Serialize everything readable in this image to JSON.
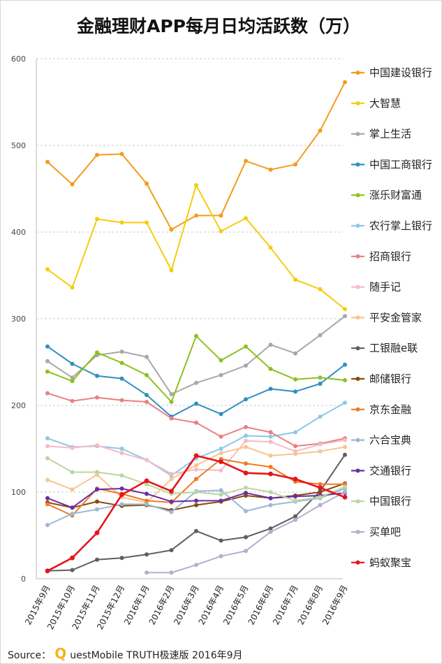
{
  "chart_data": {
    "type": "line",
    "title": "金融理财APP每月日均活跃数（万）",
    "x": [
      "2015年9月",
      "2015年10月",
      "2015年11月",
      "2015年12月",
      "2016年1月",
      "2016年2月",
      "2016年3月",
      "2016年4月",
      "2016年5月",
      "2016年6月",
      "2016年7月",
      "2016年8月",
      "2016年9月"
    ],
    "ylim": [
      0,
      600
    ],
    "yticks": [
      "0",
      "100",
      "200",
      "300",
      "400",
      "500",
      "600"
    ],
    "grid": true,
    "legend_position": "right",
    "series": [
      {
        "name": "中国建设银行",
        "color": "#f39c1c",
        "values": [
          481,
          455,
          489,
          490,
          456,
          403,
          419,
          419,
          482,
          472,
          478,
          517,
          573
        ]
      },
      {
        "name": "大智慧",
        "color": "#f5cd0f",
        "values": [
          357,
          336,
          415,
          411,
          411,
          356,
          454,
          401,
          416,
          382,
          345,
          334,
          311
        ]
      },
      {
        "name": "掌上生活",
        "color": "#a8a8a8",
        "values": [
          251,
          232,
          258,
          262,
          256,
          213,
          226,
          235,
          246,
          270,
          260,
          281,
          303
        ]
      },
      {
        "name": "中国工商银行",
        "color": "#2e8fc2",
        "values": [
          268,
          248,
          234,
          231,
          212,
          187,
          202,
          190,
          207,
          219,
          216,
          225,
          247
        ]
      },
      {
        "name": "涨乐财富通",
        "color": "#8bc21e",
        "values": [
          239,
          228,
          261,
          249,
          235,
          204,
          280,
          252,
          268,
          242,
          230,
          232,
          229
        ]
      },
      {
        "name": "农行掌上银行",
        "color": "#8ec8e6",
        "values": [
          162,
          152,
          153,
          150,
          137,
          119,
          139,
          150,
          165,
          164,
          169,
          187,
          203
        ]
      },
      {
        "name": "招商银行",
        "color": "#e98080",
        "values": [
          214,
          205,
          209,
          206,
          204,
          185,
          180,
          164,
          175,
          169,
          153,
          156,
          162
        ]
      },
      {
        "name": "随手记",
        "color": "#f5bcc4",
        "values": [
          153,
          151,
          154,
          145,
          137,
          121,
          126,
          125,
          159,
          158,
          147,
          155,
          160
        ]
      },
      {
        "name": "平安金管家",
        "color": "#f8c58f",
        "values": [
          114,
          103,
          120,
          94,
          88,
          115,
          131,
          145,
          152,
          142,
          144,
          147,
          152
        ]
      },
      {
        "name": "工银融e联",
        "color": "#5f5f5f",
        "values": [
          9,
          10,
          22,
          24,
          28,
          33,
          55,
          44,
          48,
          58,
          72,
          101,
          143
        ]
      },
      {
        "name": "邮储银行",
        "color": "#8a4a0e",
        "values": [
          88,
          82,
          89,
          84,
          85,
          79,
          85,
          89,
          96,
          93,
          96,
          100,
          110
        ]
      },
      {
        "name": "京东金融",
        "color": "#ef7a22",
        "values": [
          86,
          73,
          104,
          98,
          90,
          88,
          115,
          138,
          133,
          129,
          112,
          109,
          109
        ]
      },
      {
        "name": "六合宝典",
        "color": "#9cb8d8",
        "values": [
          62,
          75,
          80,
          86,
          86,
          77,
          101,
          102,
          78,
          85,
          89,
          93,
          104
        ]
      },
      {
        "name": "交通银行",
        "color": "#6b2ea0",
        "values": [
          93,
          82,
          103,
          104,
          98,
          89,
          90,
          90,
          99,
          93,
          95,
          96,
          99
        ]
      },
      {
        "name": "中国银行",
        "color": "#bcd6a0",
        "values": [
          139,
          123,
          123,
          119,
          109,
          98,
          100,
          97,
          105,
          100,
          90,
          94,
          106
        ]
      },
      {
        "name": "买单吧",
        "color": "#b3aed2",
        "values": [
          null,
          null,
          null,
          null,
          7,
          7,
          16,
          26,
          32,
          54,
          68,
          85,
          100
        ]
      },
      {
        "name": "蚂蚁聚宝",
        "color": "#e6141b",
        "values": [
          9,
          24,
          53,
          97,
          113,
          101,
          142,
          135,
          122,
          121,
          115,
          105,
          94
        ]
      }
    ],
    "source": {
      "prefix": "Source：",
      "q": "Q",
      "rest": "uestMobile TRUTH极速版 2016年9月"
    }
  }
}
